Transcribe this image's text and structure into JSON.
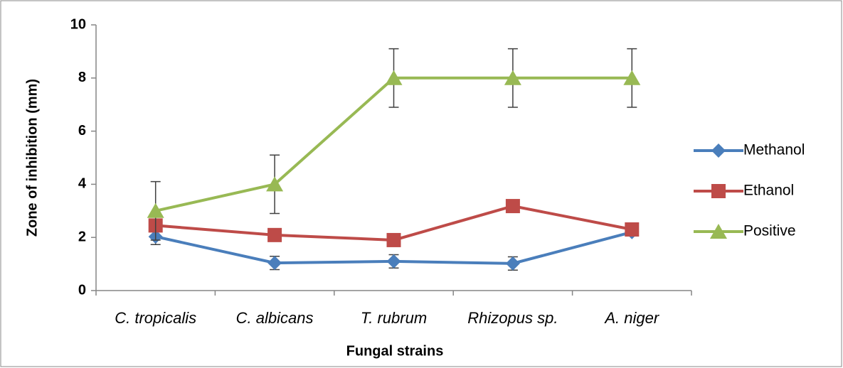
{
  "chart_data": {
    "type": "line",
    "x_label": "Fungal strains",
    "y_label": "Zone of inhibition (mm)",
    "categories": [
      "C. tropicalis",
      "C. albicans",
      "T. rubrum",
      "Rhizopus sp.",
      "A. niger"
    ],
    "series": [
      {
        "name": "Methanol",
        "color": "#4a7ebb",
        "marker": "diamond",
        "values": [
          2.03,
          1.04,
          1.1,
          1.02,
          2.2
        ],
        "errors": [
          0.3,
          0.25,
          0.25,
          0.25,
          0.1
        ]
      },
      {
        "name": "Ethanol",
        "color": "#be4b48",
        "marker": "square",
        "values": [
          2.45,
          2.09,
          1.9,
          3.18,
          2.3
        ]
      },
      {
        "name": "Positive",
        "color": "#98b954",
        "marker": "triangle",
        "values": [
          3,
          4,
          8,
          8,
          8
        ],
        "errors": [
          1.1,
          1.1,
          1.1,
          1.1,
          1.1
        ]
      }
    ],
    "ylim": [
      0,
      10
    ],
    "yticks": [
      0,
      2,
      4,
      6,
      8,
      10
    ],
    "legend": "right"
  }
}
